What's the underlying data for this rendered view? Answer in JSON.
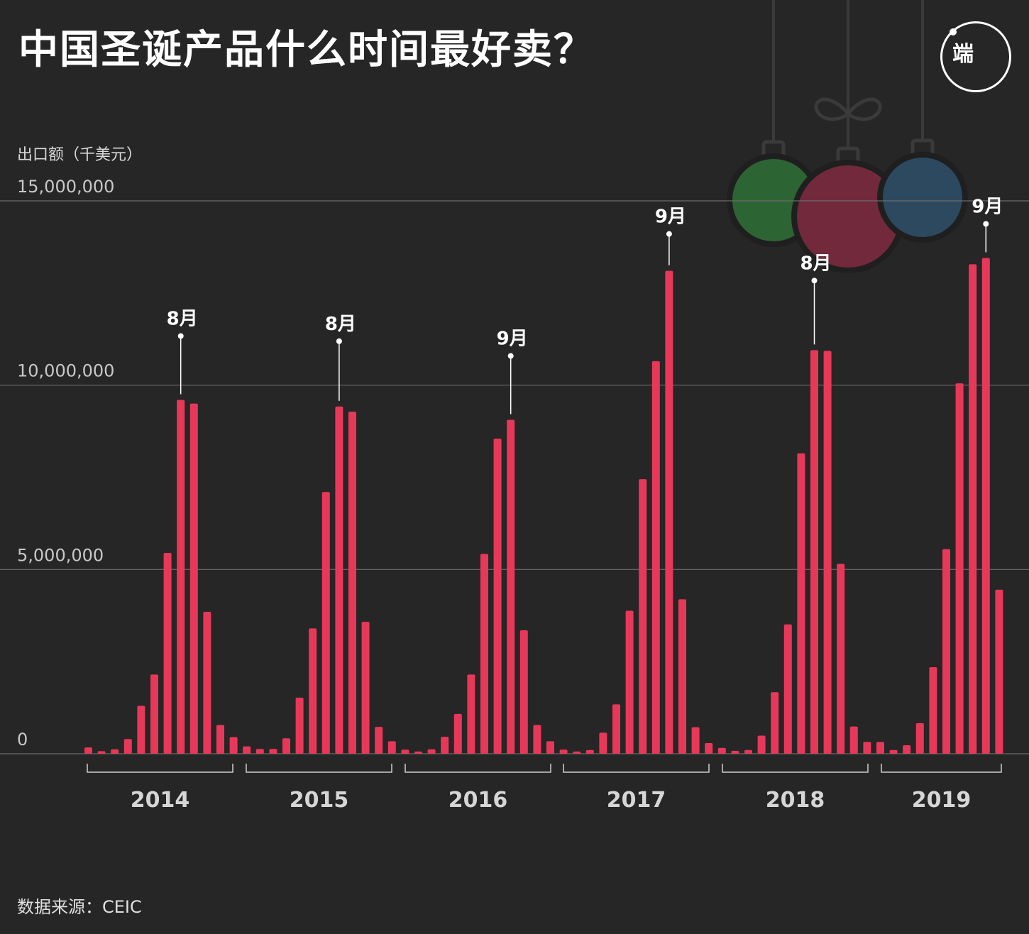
{
  "header": {
    "title": "中国圣诞产品什么时间最好卖？",
    "logo_text": "端"
  },
  "footer": {
    "source": "数据来源：CEIC"
  },
  "colors": {
    "bar": "#e8385a",
    "background": "#262626",
    "gridline": "#6b6b6b",
    "ornament_green": "#2f6b35",
    "ornament_red": "#7a2a3e",
    "ornament_blue": "#2d4e66"
  },
  "chart_data": {
    "type": "bar",
    "title": "中国圣诞产品什么时间最好卖？",
    "ylabel": "出口额（千美元）",
    "xlabel": "",
    "ylim": [
      0,
      15000000
    ],
    "yticks": [
      "0",
      "5,000,000",
      "10,000,000",
      "15,000,000"
    ],
    "ytick_values": [
      0,
      5000000,
      10000000,
      15000000
    ],
    "grid": true,
    "groups": [
      "2014",
      "2015",
      "2016",
      "2017",
      "2018",
      "2019"
    ],
    "series": [
      {
        "values": [
          [
            170000,
            70000,
            120000,
            400000,
            1300000,
            2150000,
            5450000,
            9600000,
            9500000,
            3850000,
            780000,
            450000
          ],
          [
            200000,
            130000,
            130000,
            420000,
            1520000,
            3400000,
            7100000,
            9420000,
            9280000,
            3580000,
            730000,
            340000
          ],
          [
            110000,
            60000,
            120000,
            460000,
            1080000,
            2150000,
            5420000,
            8550000,
            9060000,
            3350000,
            780000,
            340000
          ],
          [
            110000,
            60000,
            100000,
            570000,
            1340000,
            3880000,
            7450000,
            10650000,
            13100000,
            4190000,
            720000,
            290000
          ],
          [
            160000,
            80000,
            100000,
            490000,
            1670000,
            3510000,
            8150000,
            10950000,
            10930000,
            5150000,
            740000,
            320000
          ],
          [
            320000,
            100000,
            230000,
            830000,
            2350000,
            5550000,
            10050000,
            13280000,
            13450000,
            4450000
          ]
        ]
      }
    ],
    "annotations": [
      {
        "group": "2014",
        "month": 8,
        "label": "8月"
      },
      {
        "group": "2015",
        "month": 8,
        "label": "8月"
      },
      {
        "group": "2016",
        "month": 9,
        "label": "9月"
      },
      {
        "group": "2017",
        "month": 9,
        "label": "9月"
      },
      {
        "group": "2018",
        "month": 8,
        "label": "8月"
      },
      {
        "group": "2019",
        "month": 9,
        "label": "9月"
      }
    ]
  }
}
